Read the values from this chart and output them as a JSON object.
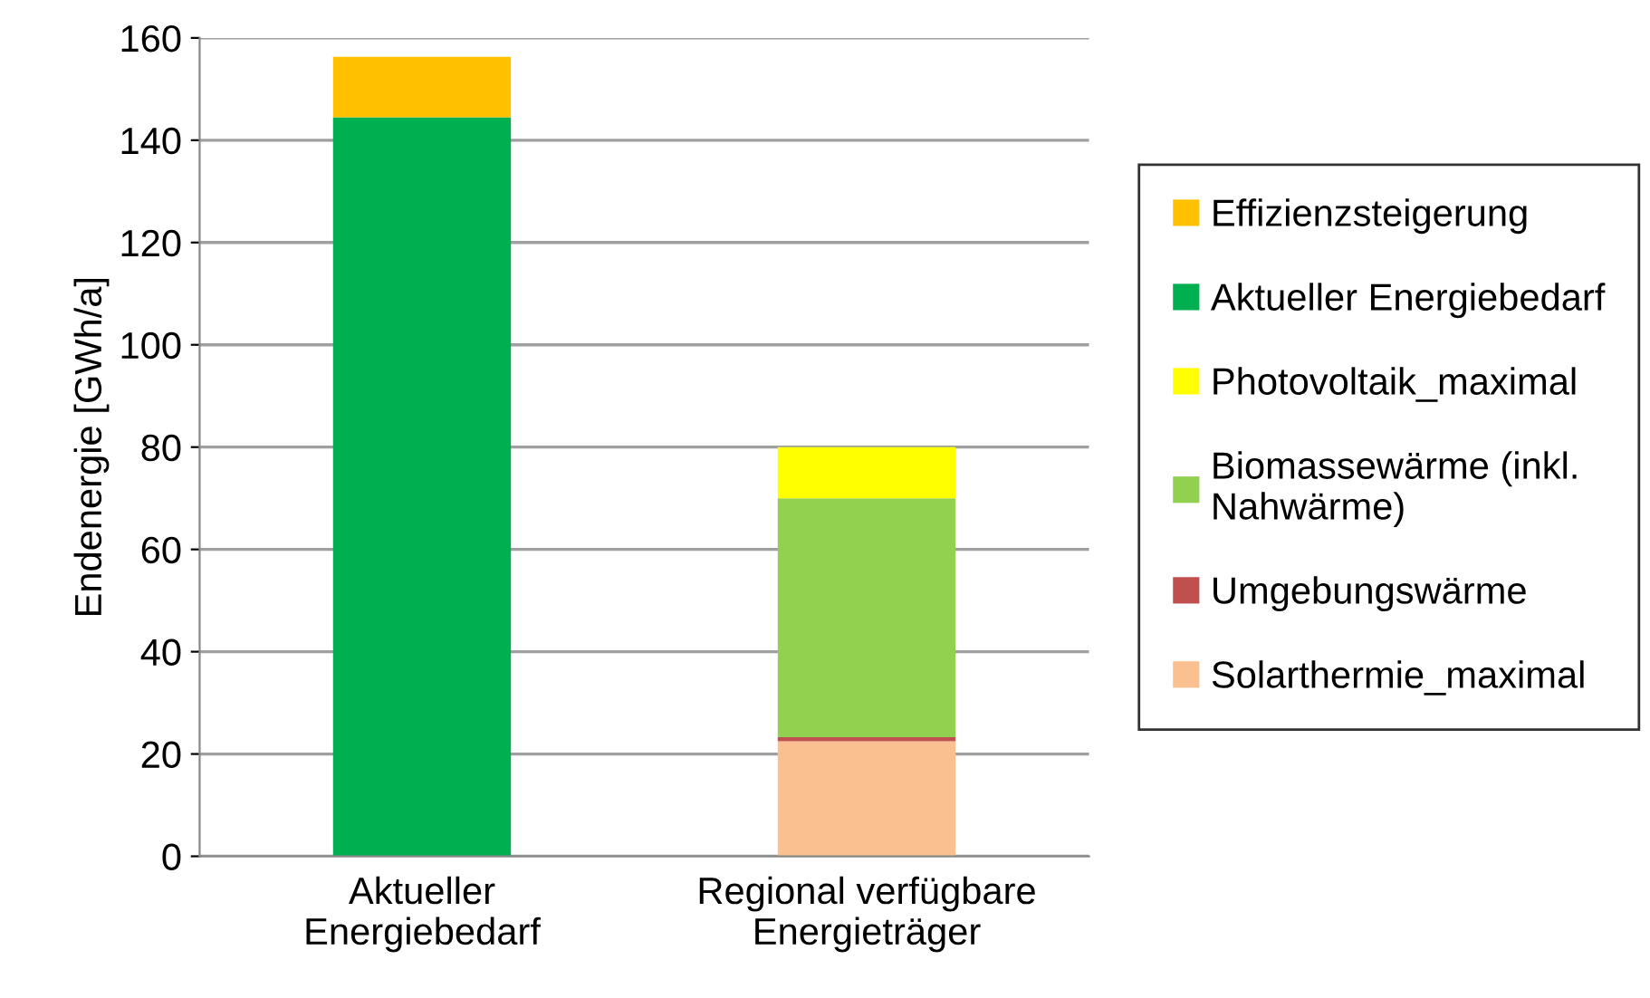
{
  "chart_data": {
    "type": "bar",
    "stacked": true,
    "ylabel": "Endenergie [GWh/a]",
    "categories": [
      "Aktueller\nEnergiebedarf",
      "Regional verfügbare\nEnergieträger"
    ],
    "series": [
      {
        "name": "Solarthermie_maximal",
        "color": "#fac090",
        "values": [
          null,
          22.5
        ]
      },
      {
        "name": "Umgebungswärme",
        "color": "#c0504d",
        "values": [
          null,
          0.8
        ]
      },
      {
        "name": "Biomassewärme (inkl.\nNahwärme)",
        "color": "#92d050",
        "values": [
          null,
          46.7
        ]
      },
      {
        "name": "Photovoltaik_maximal",
        "color": "#ffff00",
        "values": [
          null,
          10
        ]
      },
      {
        "name": "Aktueller Energiebedarf",
        "color": "#00b050",
        "values": [
          144.5,
          null
        ]
      },
      {
        "name": "Effizienzsteigerung",
        "color": "#ffc000",
        "values": [
          11.8,
          null
        ]
      }
    ],
    "ylim": [
      0,
      160
    ],
    "yticks": [
      0,
      20,
      40,
      60,
      80,
      100,
      120,
      140,
      160
    ],
    "grid": "y",
    "legend": "right"
  }
}
